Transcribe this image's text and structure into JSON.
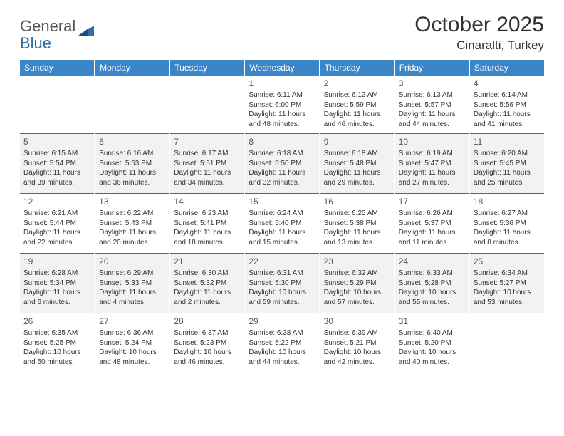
{
  "brand": {
    "part1": "General",
    "part2": "Blue"
  },
  "title": "October 2025",
  "location": "Cinaralti, Turkey",
  "theme": {
    "header_bg": "#3a86c8",
    "header_fg": "#ffffff",
    "rule_color": "#2f6fa7",
    "shade_bg": "#f2f2f2",
    "daynum_color": "#555555",
    "body_font_size": 10,
    "header_font_size": 12,
    "title_font_size": 30
  },
  "daysOfWeek": [
    "Sunday",
    "Monday",
    "Tuesday",
    "Wednesday",
    "Thursday",
    "Friday",
    "Saturday"
  ],
  "weeks": [
    [
      null,
      null,
      null,
      {
        "n": "1",
        "sr": "6:11 AM",
        "ss": "6:00 PM",
        "dl": "11 hours and 48 minutes."
      },
      {
        "n": "2",
        "sr": "6:12 AM",
        "ss": "5:59 PM",
        "dl": "11 hours and 46 minutes."
      },
      {
        "n": "3",
        "sr": "6:13 AM",
        "ss": "5:57 PM",
        "dl": "11 hours and 44 minutes."
      },
      {
        "n": "4",
        "sr": "6:14 AM",
        "ss": "5:56 PM",
        "dl": "11 hours and 41 minutes."
      }
    ],
    [
      {
        "n": "5",
        "sr": "6:15 AM",
        "ss": "5:54 PM",
        "dl": "11 hours and 39 minutes."
      },
      {
        "n": "6",
        "sr": "6:16 AM",
        "ss": "5:53 PM",
        "dl": "11 hours and 36 minutes."
      },
      {
        "n": "7",
        "sr": "6:17 AM",
        "ss": "5:51 PM",
        "dl": "11 hours and 34 minutes."
      },
      {
        "n": "8",
        "sr": "6:18 AM",
        "ss": "5:50 PM",
        "dl": "11 hours and 32 minutes."
      },
      {
        "n": "9",
        "sr": "6:18 AM",
        "ss": "5:48 PM",
        "dl": "11 hours and 29 minutes."
      },
      {
        "n": "10",
        "sr": "6:19 AM",
        "ss": "5:47 PM",
        "dl": "11 hours and 27 minutes."
      },
      {
        "n": "11",
        "sr": "6:20 AM",
        "ss": "5:45 PM",
        "dl": "11 hours and 25 minutes."
      }
    ],
    [
      {
        "n": "12",
        "sr": "6:21 AM",
        "ss": "5:44 PM",
        "dl": "11 hours and 22 minutes."
      },
      {
        "n": "13",
        "sr": "6:22 AM",
        "ss": "5:43 PM",
        "dl": "11 hours and 20 minutes."
      },
      {
        "n": "14",
        "sr": "6:23 AM",
        "ss": "5:41 PM",
        "dl": "11 hours and 18 minutes."
      },
      {
        "n": "15",
        "sr": "6:24 AM",
        "ss": "5:40 PM",
        "dl": "11 hours and 15 minutes."
      },
      {
        "n": "16",
        "sr": "6:25 AM",
        "ss": "5:38 PM",
        "dl": "11 hours and 13 minutes."
      },
      {
        "n": "17",
        "sr": "6:26 AM",
        "ss": "5:37 PM",
        "dl": "11 hours and 11 minutes."
      },
      {
        "n": "18",
        "sr": "6:27 AM",
        "ss": "5:36 PM",
        "dl": "11 hours and 8 minutes."
      }
    ],
    [
      {
        "n": "19",
        "sr": "6:28 AM",
        "ss": "5:34 PM",
        "dl": "11 hours and 6 minutes."
      },
      {
        "n": "20",
        "sr": "6:29 AM",
        "ss": "5:33 PM",
        "dl": "11 hours and 4 minutes."
      },
      {
        "n": "21",
        "sr": "6:30 AM",
        "ss": "5:32 PM",
        "dl": "11 hours and 2 minutes."
      },
      {
        "n": "22",
        "sr": "6:31 AM",
        "ss": "5:30 PM",
        "dl": "10 hours and 59 minutes."
      },
      {
        "n": "23",
        "sr": "6:32 AM",
        "ss": "5:29 PM",
        "dl": "10 hours and 57 minutes."
      },
      {
        "n": "24",
        "sr": "6:33 AM",
        "ss": "5:28 PM",
        "dl": "10 hours and 55 minutes."
      },
      {
        "n": "25",
        "sr": "6:34 AM",
        "ss": "5:27 PM",
        "dl": "10 hours and 53 minutes."
      }
    ],
    [
      {
        "n": "26",
        "sr": "6:35 AM",
        "ss": "5:25 PM",
        "dl": "10 hours and 50 minutes."
      },
      {
        "n": "27",
        "sr": "6:36 AM",
        "ss": "5:24 PM",
        "dl": "10 hours and 48 minutes."
      },
      {
        "n": "28",
        "sr": "6:37 AM",
        "ss": "5:23 PM",
        "dl": "10 hours and 46 minutes."
      },
      {
        "n": "29",
        "sr": "6:38 AM",
        "ss": "5:22 PM",
        "dl": "10 hours and 44 minutes."
      },
      {
        "n": "30",
        "sr": "6:39 AM",
        "ss": "5:21 PM",
        "dl": "10 hours and 42 minutes."
      },
      {
        "n": "31",
        "sr": "6:40 AM",
        "ss": "5:20 PM",
        "dl": "10 hours and 40 minutes."
      },
      null
    ]
  ],
  "labels": {
    "sunrise": "Sunrise:",
    "sunset": "Sunset:",
    "daylight": "Daylight:"
  }
}
